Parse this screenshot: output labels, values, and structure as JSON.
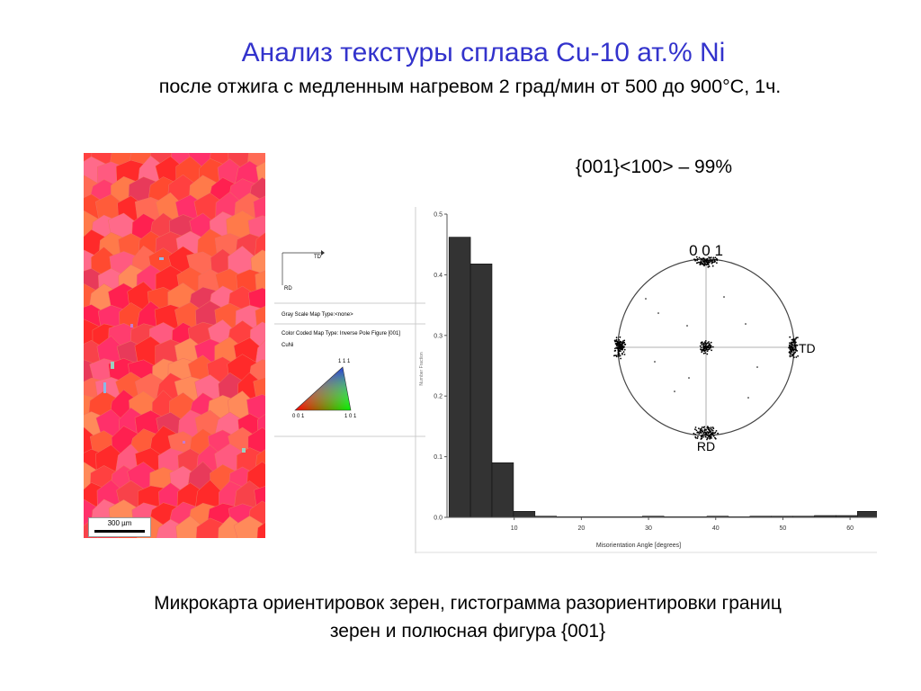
{
  "title": "Анализ текстуры сплава Cu-10 ат.% Ni",
  "subtitle": "после отжига с медленным нагревом 2 град/мин от 500 до 900°С, 1ч.",
  "texture_component": "{001}<100> – 99%",
  "caption": {
    "line1": "Микрокарта ориентировок зерен, гистограмма разориентировки границ",
    "line2": "зерен и полюсная фигура {001}"
  },
  "grain_map": {
    "scale_bar_label": "300 µm",
    "colors": [
      "#ff2a2a",
      "#ff4040",
      "#ff5c3a",
      "#ff6a55",
      "#ff3d6e",
      "#ff5a80",
      "#f8424a",
      "#ff7a4a",
      "#ff306a",
      "#e83a5a",
      "#ff8a5a",
      "#ff4a30",
      "#ff6a8a",
      "#ff2050"
    ],
    "minor_colors": [
      "#8ab8e8",
      "#c47ad0",
      "#9ad0c0"
    ]
  },
  "legend": {
    "td_label": "TD",
    "rd_label": "RD",
    "gray_scale": "Gray Scale Map Type:<none>",
    "color_coded": "Color Coded Map Type: Inverse Pole Figure [001]",
    "phase": "CuNi",
    "corner_111": "1 1 1",
    "corner_001": "0 0 1",
    "corner_101": "1 0 1"
  },
  "pole_figure": {
    "title": "0 0 1",
    "td_label": "TD",
    "rd_label": "RD"
  },
  "chart_data": {
    "type": "bar",
    "xlabel": "Misorientation Angle [degrees]",
    "ylabel": "Number Fraction",
    "x_ticks": [
      "10",
      "20",
      "30",
      "40",
      "50",
      "60"
    ],
    "y_ticks": [
      "0.0",
      "0.1",
      "0.2",
      "0.3",
      "0.4",
      "0.5"
    ],
    "xlim": [
      0,
      64
    ],
    "ylim": [
      0,
      0.5
    ],
    "bar_width": 3.2,
    "bars": [
      {
        "x": 0.3,
        "value": 0.462
      },
      {
        "x": 3.5,
        "value": 0.418
      },
      {
        "x": 6.7,
        "value": 0.09
      },
      {
        "x": 9.9,
        "value": 0.01
      },
      {
        "x": 13.1,
        "value": 0.002
      },
      {
        "x": 16.3,
        "value": 0.001
      },
      {
        "x": 19.5,
        "value": 0.001
      },
      {
        "x": 22.7,
        "value": 0.001
      },
      {
        "x": 25.9,
        "value": 0.001
      },
      {
        "x": 29.1,
        "value": 0.002
      },
      {
        "x": 32.3,
        "value": 0.001
      },
      {
        "x": 35.5,
        "value": 0.001
      },
      {
        "x": 38.7,
        "value": 0.002
      },
      {
        "x": 41.9,
        "value": 0.001
      },
      {
        "x": 45.1,
        "value": 0.002
      },
      {
        "x": 48.3,
        "value": 0.002
      },
      {
        "x": 51.5,
        "value": 0.002
      },
      {
        "x": 54.7,
        "value": 0.003
      },
      {
        "x": 57.9,
        "value": 0.003
      },
      {
        "x": 61.1,
        "value": 0.01
      }
    ]
  }
}
